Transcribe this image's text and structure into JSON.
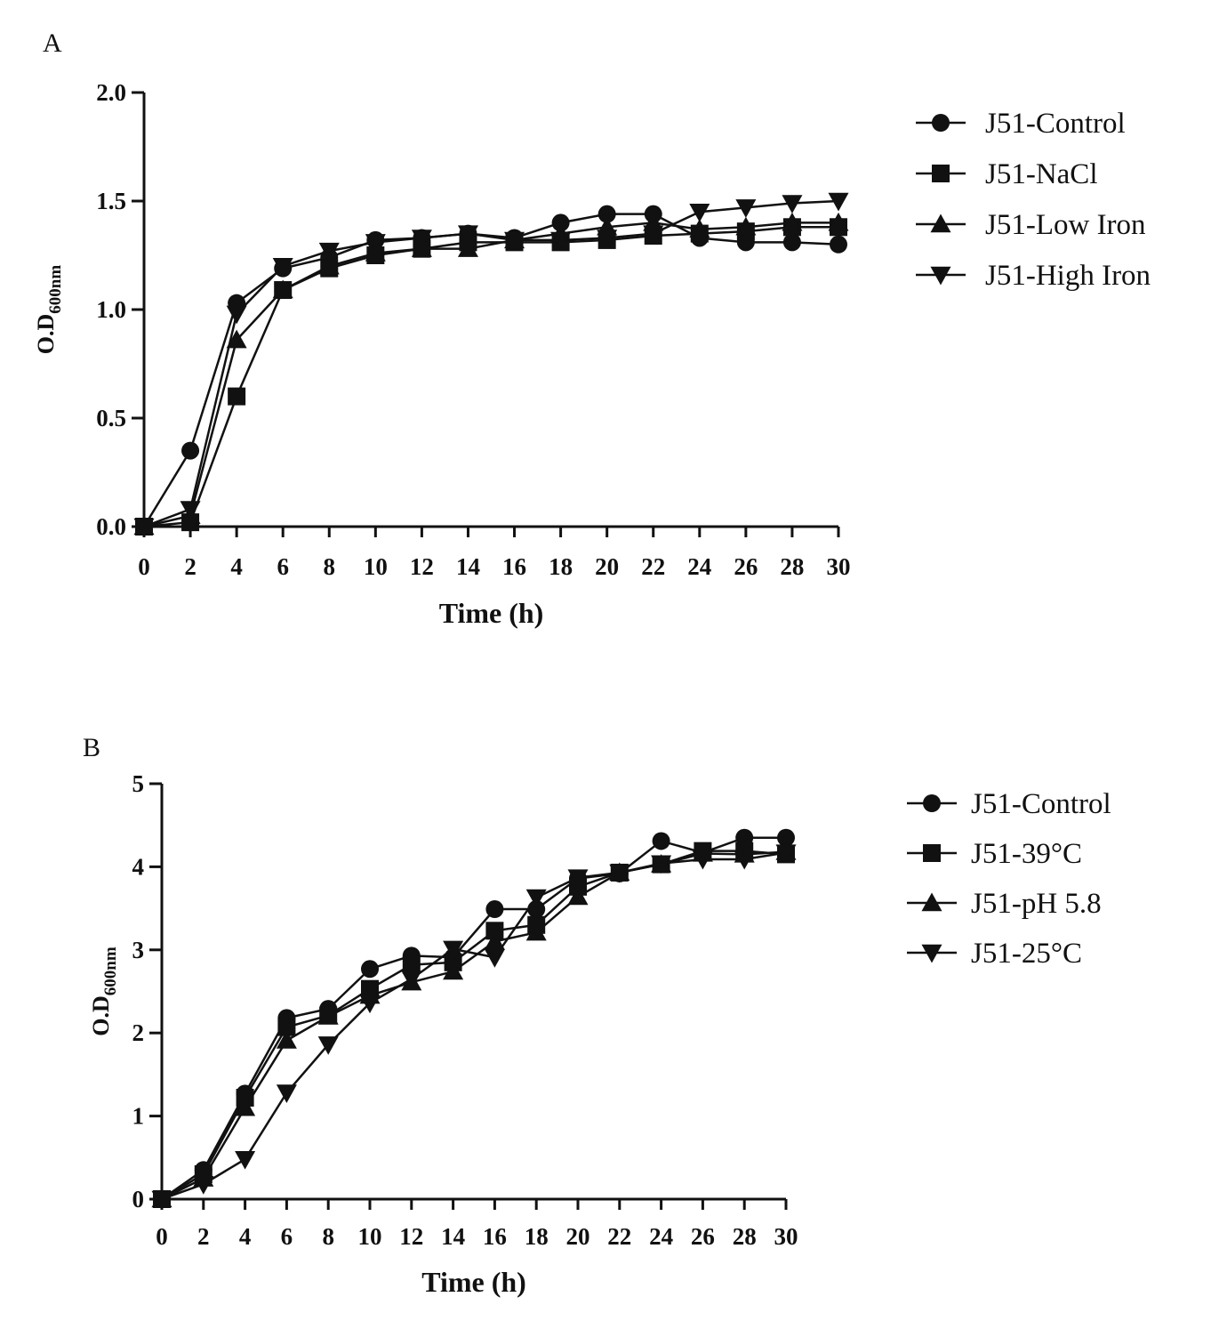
{
  "chart_data": [
    {
      "panel": "A",
      "type": "line",
      "title": "",
      "xlabel": "Time (h)",
      "ylabel_main": "O.D",
      "ylabel_sub": "600nm",
      "xlim": [
        0,
        30
      ],
      "ylim": [
        0,
        2.0
      ],
      "x_ticks": [
        0,
        2,
        4,
        6,
        8,
        10,
        12,
        14,
        16,
        18,
        20,
        22,
        24,
        26,
        28,
        30
      ],
      "y_ticks": [
        0.0,
        0.5,
        1.0,
        1.5,
        2.0
      ],
      "y_tick_labels": [
        "0.0",
        "0.5",
        "1.0",
        "1.5",
        "2.0"
      ],
      "legend_position": "right",
      "x": [
        0,
        2,
        4,
        6,
        8,
        10,
        12,
        14,
        16,
        18,
        20,
        22,
        24,
        26,
        28,
        30
      ],
      "series": [
        {
          "name": "J51-Control",
          "marker": "circle",
          "values": [
            0.0,
            0.35,
            1.03,
            1.19,
            1.24,
            1.32,
            1.33,
            1.35,
            1.33,
            1.4,
            1.44,
            1.44,
            1.33,
            1.31,
            1.31,
            1.3
          ]
        },
        {
          "name": "J51-NaCl",
          "marker": "square",
          "values": [
            0.0,
            0.02,
            0.6,
            1.09,
            1.19,
            1.25,
            1.28,
            1.31,
            1.31,
            1.31,
            1.32,
            1.34,
            1.35,
            1.36,
            1.38,
            1.38
          ]
        },
        {
          "name": "J51-Low Iron",
          "marker": "triangle-up",
          "values": [
            0.0,
            0.05,
            0.86,
            1.09,
            1.2,
            1.26,
            1.28,
            1.28,
            1.32,
            1.35,
            1.38,
            1.4,
            1.37,
            1.38,
            1.4,
            1.4
          ]
        },
        {
          "name": "J51-High Iron",
          "marker": "triangle-down",
          "values": [
            0.0,
            0.08,
            0.98,
            1.2,
            1.27,
            1.31,
            1.33,
            1.35,
            1.32,
            1.32,
            1.33,
            1.35,
            1.45,
            1.47,
            1.49,
            1.5
          ]
        }
      ]
    },
    {
      "panel": "B",
      "type": "line",
      "title": "",
      "xlabel": "Time (h)",
      "ylabel_main": "O.D",
      "ylabel_sub": "600nm",
      "xlim": [
        0,
        30
      ],
      "ylim": [
        0,
        5
      ],
      "x_ticks": [
        0,
        2,
        4,
        6,
        8,
        10,
        12,
        14,
        16,
        18,
        20,
        22,
        24,
        26,
        28,
        30
      ],
      "y_ticks": [
        0,
        1,
        2,
        3,
        4,
        5
      ],
      "y_tick_labels": [
        "0",
        "1",
        "2",
        "3",
        "4",
        "5"
      ],
      "legend_position": "right",
      "x": [
        0,
        2,
        4,
        6,
        8,
        10,
        12,
        14,
        16,
        18,
        20,
        22,
        24,
        26,
        28,
        30
      ],
      "series": [
        {
          "name": "J51-Control",
          "marker": "circle",
          "values": [
            0.0,
            0.35,
            1.27,
            2.18,
            2.29,
            2.77,
            2.93,
            2.91,
            3.49,
            3.49,
            3.86,
            3.92,
            4.31,
            4.17,
            4.35,
            4.35
          ]
        },
        {
          "name": "J51-39°C",
          "marker": "square",
          "values": [
            0.0,
            0.3,
            1.22,
            2.07,
            2.21,
            2.53,
            2.82,
            2.85,
            3.23,
            3.3,
            3.76,
            3.93,
            4.03,
            4.19,
            4.19,
            4.15
          ]
        },
        {
          "name": "J51-pH 5.8",
          "marker": "triangle-up",
          "values": [
            0.0,
            0.25,
            1.1,
            1.91,
            2.2,
            2.45,
            2.61,
            2.74,
            3.1,
            3.21,
            3.64,
            3.93,
            4.03,
            4.16,
            4.15,
            4.18
          ]
        },
        {
          "name": "J51-25°C",
          "marker": "triangle-down",
          "values": [
            0.0,
            0.18,
            0.48,
            1.28,
            1.86,
            2.36,
            2.65,
            3.01,
            2.91,
            3.63,
            3.87,
            3.93,
            4.04,
            4.09,
            4.09,
            4.17
          ]
        }
      ]
    }
  ]
}
